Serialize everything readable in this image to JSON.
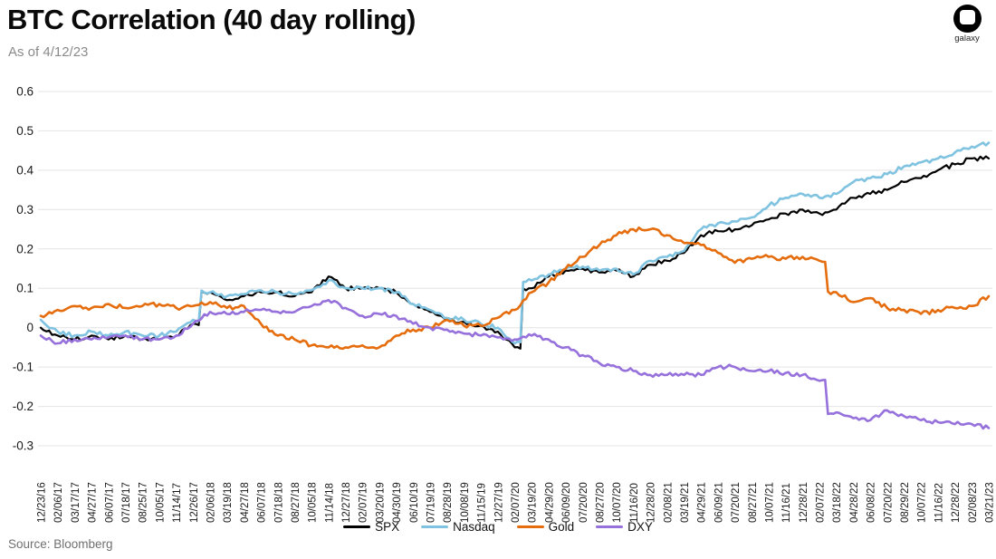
{
  "header": {
    "title": "BTC Correlation (40 day rolling)",
    "as_of": "As of 4/12/23",
    "logo_text": "galaxy"
  },
  "source": {
    "label": "Source: Bloomberg"
  },
  "colors": {
    "grid": "#e4e4e4",
    "tick_text": "#1a1a1a",
    "spx": "#000000",
    "nasdaq": "#7fc3e1",
    "gold": "#e56d0e",
    "dxy": "#9671db"
  },
  "chart_data": {
    "type": "line",
    "title": "BTC Correlation (40 day rolling)",
    "as_of": "As of 4/12/23",
    "ylabel": "",
    "xlabel": "",
    "ylim": [
      -0.3,
      0.6
    ],
    "yticks": [
      "0.6",
      "0.5",
      "0.4",
      "0.3",
      "0.2",
      "0.1",
      "0",
      "-0.1",
      "-0.2",
      "-0.3"
    ],
    "grid": "horizontal",
    "legend_position": "bottom",
    "categories": [
      "12/23/16",
      "02/06/17",
      "03/17/17",
      "04/27/17",
      "06/07/17",
      "07/18/17",
      "08/25/17",
      "10/05/17",
      "11/14/17",
      "12/26/17",
      "02/06/18",
      "03/19/18",
      "04/27/18",
      "06/07/18",
      "07/18/18",
      "08/27/18",
      "10/05/18",
      "11/14/18",
      "12/27/18",
      "02/07/19",
      "03/20/19",
      "04/30/19",
      "06/10/19",
      "07/19/19",
      "08/28/19",
      "10/08/19",
      "11/15/19",
      "12/27/19",
      "02/07/20",
      "03/19/20",
      "04/29/20",
      "06/09/20",
      "07/20/20",
      "08/27/20",
      "10/07/20",
      "11/16/20",
      "12/28/20",
      "02/08/21",
      "03/19/21",
      "04/29/21",
      "06/09/21",
      "07/20/21",
      "08/27/21",
      "10/07/21",
      "11/16/21",
      "12/28/21",
      "02/07/22",
      "03/18/22",
      "04/28/22",
      "06/08/22",
      "07/20/22",
      "08/29/22",
      "10/07/22",
      "11/16/22",
      "12/28/22",
      "02/08/23",
      "03/21/23"
    ],
    "series": [
      {
        "name": "SPX",
        "color": "#000000",
        "values": [
          0.0,
          -0.02,
          -0.03,
          -0.02,
          -0.03,
          -0.02,
          -0.03,
          -0.03,
          -0.02,
          0.01,
          0.09,
          0.07,
          0.08,
          0.09,
          0.09,
          0.08,
          0.09,
          0.13,
          0.1,
          0.1,
          0.1,
          0.09,
          0.06,
          0.04,
          0.02,
          0.015,
          0.005,
          -0.01,
          -0.05,
          0.1,
          0.13,
          0.145,
          0.15,
          0.14,
          0.145,
          0.13,
          0.16,
          0.17,
          0.19,
          0.235,
          0.245,
          0.25,
          0.26,
          0.275,
          0.29,
          0.3,
          0.29,
          0.3,
          0.33,
          0.34,
          0.35,
          0.37,
          0.38,
          0.4,
          0.415,
          0.43,
          0.43
        ]
      },
      {
        "name": "Nasdaq",
        "color": "#7fc3e1",
        "values": [
          0.02,
          -0.01,
          -0.02,
          -0.01,
          -0.02,
          -0.01,
          -0.02,
          -0.02,
          -0.01,
          0.02,
          0.09,
          0.08,
          0.085,
          0.095,
          0.09,
          0.085,
          0.095,
          0.12,
          0.1,
          0.1,
          0.1,
          0.09,
          0.06,
          0.045,
          0.025,
          0.02,
          0.01,
          0.0,
          -0.04,
          0.12,
          0.135,
          0.15,
          0.155,
          0.145,
          0.15,
          0.135,
          0.17,
          0.18,
          0.195,
          0.25,
          0.265,
          0.27,
          0.28,
          0.31,
          0.33,
          0.34,
          0.33,
          0.34,
          0.37,
          0.38,
          0.39,
          0.41,
          0.42,
          0.43,
          0.445,
          0.46,
          0.47
        ]
      },
      {
        "name": "Gold",
        "color": "#e56d0e",
        "values": [
          0.03,
          0.045,
          0.055,
          0.05,
          0.06,
          0.05,
          0.055,
          0.06,
          0.05,
          0.055,
          0.065,
          0.05,
          0.055,
          0.01,
          -0.02,
          -0.03,
          -0.045,
          -0.05,
          -0.05,
          -0.045,
          -0.05,
          -0.02,
          -0.005,
          0.0,
          0.02,
          0.005,
          0.005,
          0.025,
          0.045,
          0.09,
          0.115,
          0.15,
          0.18,
          0.21,
          0.235,
          0.25,
          0.25,
          0.235,
          0.215,
          0.21,
          0.19,
          0.165,
          0.175,
          0.18,
          0.175,
          0.18,
          0.17,
          0.09,
          0.065,
          0.075,
          0.05,
          0.045,
          0.035,
          0.045,
          0.05,
          0.055,
          0.08
        ]
      },
      {
        "name": "DXY",
        "color": "#9671db",
        "values": [
          -0.02,
          -0.04,
          -0.03,
          -0.03,
          -0.025,
          -0.02,
          -0.03,
          -0.03,
          -0.02,
          0.01,
          0.04,
          0.035,
          0.04,
          0.045,
          0.04,
          0.04,
          0.055,
          0.07,
          0.05,
          0.03,
          0.035,
          0.03,
          0.01,
          0.0,
          -0.005,
          -0.015,
          -0.02,
          -0.025,
          -0.03,
          -0.02,
          -0.03,
          -0.05,
          -0.07,
          -0.09,
          -0.1,
          -0.11,
          -0.12,
          -0.12,
          -0.12,
          -0.12,
          -0.1,
          -0.1,
          -0.11,
          -0.11,
          -0.115,
          -0.12,
          -0.135,
          -0.215,
          -0.23,
          -0.235,
          -0.21,
          -0.225,
          -0.235,
          -0.24,
          -0.245,
          -0.245,
          -0.255
        ]
      }
    ]
  }
}
